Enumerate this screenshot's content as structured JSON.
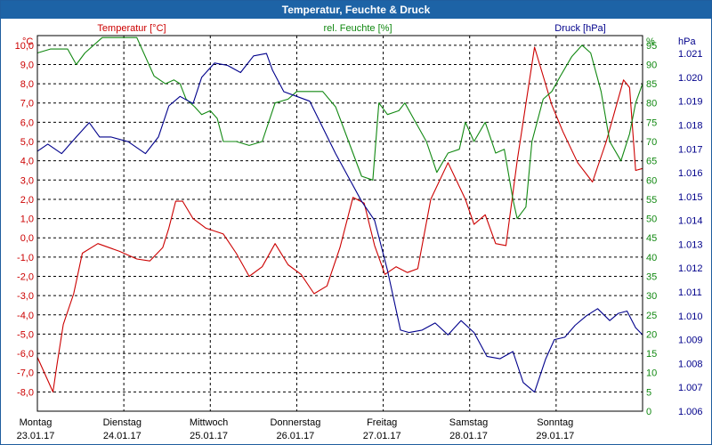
{
  "window": {
    "title": "Temperatur, Feuchte & Druck"
  },
  "colors": {
    "temperature": "#cc0000",
    "humidity": "#118811",
    "pressure": "#00008b",
    "title_bg": "#1d63a6"
  },
  "chart_data": {
    "type": "line",
    "title": "Temperatur, Feuchte & Druck",
    "x_days": [
      {
        "day": "Montag",
        "date": "23.01.17"
      },
      {
        "day": "Dienstag",
        "date": "24.01.17"
      },
      {
        "day": "Mittwoch",
        "date": "25.01.17"
      },
      {
        "day": "Donnerstag",
        "date": "26.01.17"
      },
      {
        "day": "Freitag",
        "date": "27.01.17"
      },
      {
        "day": "Samstag",
        "date": "28.01.17"
      },
      {
        "day": "Sonntag",
        "date": "29.01.17"
      }
    ],
    "x_range": [
      0,
      7
    ],
    "axes": {
      "temperature": {
        "label": "Temperatur [°C]",
        "unit": "°C",
        "range": [
          -9,
          10.5
        ],
        "ticks": [
          10.0,
          9.0,
          8.0,
          7.0,
          6.0,
          5.0,
          4.0,
          3.0,
          2.0,
          1.0,
          0.0,
          -1.0,
          -2.0,
          -3.0,
          -4.0,
          -5.0,
          -6.0,
          -7.0,
          -8.0
        ],
        "tick_labels": [
          "10,0",
          "9,0",
          "8,0",
          "7,0",
          "6,0",
          "5,0",
          "4,0",
          "3,0",
          "2,0",
          "1,0",
          "0,0",
          "-1,0",
          "-2,0",
          "-3,0",
          "-4,0",
          "-5,0",
          "-6,0",
          "-7,0",
          "-8,0"
        ]
      },
      "humidity": {
        "label": "rel. Feuchte [%]",
        "unit": "%",
        "range": [
          0,
          97.5
        ],
        "ticks": [
          95,
          90,
          85,
          80,
          75,
          70,
          65,
          60,
          55,
          50,
          45,
          40,
          35,
          30,
          25,
          20,
          15,
          10,
          5,
          0
        ],
        "tick_labels": [
          "95",
          "90",
          "85",
          "80",
          "75",
          "70",
          "65",
          "60",
          "55",
          "50",
          "45",
          "40",
          "35",
          "30",
          "25",
          "20",
          "15",
          "10",
          "5",
          "0"
        ]
      },
      "pressure": {
        "label": "Druck [hPa]",
        "unit": "hPa",
        "range": [
          1006,
          1021.75
        ],
        "ticks": [
          1021,
          1020,
          1019,
          1018,
          1017,
          1016,
          1015,
          1014,
          1013,
          1012,
          1011,
          1010,
          1009,
          1008,
          1007,
          1006
        ],
        "tick_labels": [
          "1.021",
          "1.020",
          "1.019",
          "1.018",
          "1.017",
          "1.016",
          "1.015",
          "1.014",
          "1.013",
          "1.012",
          "1.011",
          "1.010",
          "1.009",
          "1.008",
          "1.007",
          "1.006"
        ]
      }
    },
    "grid": true,
    "series": [
      {
        "name": "Temperatur",
        "axis": "temperature",
        "color": "#cc0000",
        "x": [
          0,
          0.12,
          0.18,
          0.23,
          0.3,
          0.42,
          0.52,
          0.7,
          0.95,
          1.15,
          1.3,
          1.45,
          1.52,
          1.6,
          1.68,
          1.8,
          1.95,
          2.15,
          2.3,
          2.45,
          2.6,
          2.75,
          2.9,
          3.05,
          3.2,
          3.35,
          3.5,
          3.65,
          3.78,
          3.9,
          4.02,
          4.15,
          4.28,
          4.4,
          4.55,
          4.75,
          4.95,
          5.05,
          5.18,
          5.3,
          5.42,
          5.55,
          5.75,
          5.95,
          6.08,
          6.25,
          6.42,
          6.58,
          6.78,
          6.85,
          6.92,
          7.0
        ],
        "y": [
          -6.2,
          -7.4,
          -8.0,
          -6.5,
          -4.5,
          -2.9,
          -0.8,
          -0.3,
          -0.7,
          -1.1,
          -1.2,
          -0.5,
          0.5,
          1.9,
          1.9,
          1.0,
          0.5,
          0.2,
          -0.8,
          -2.0,
          -1.5,
          -0.3,
          -1.4,
          -1.9,
          -2.9,
          -2.5,
          -0.5,
          2.1,
          1.8,
          -0.4,
          -1.9,
          -1.5,
          -1.8,
          -1.6,
          2.0,
          3.9,
          2.0,
          0.7,
          1.2,
          -0.3,
          -0.4,
          4.0,
          9.9,
          6.9,
          5.5,
          3.9,
          2.9,
          5.0,
          8.2,
          7.8,
          3.5,
          3.6
        ]
      },
      {
        "name": "rel. Feuchte",
        "axis": "humidity",
        "color": "#118811",
        "x": [
          0,
          0.15,
          0.35,
          0.45,
          0.55,
          0.75,
          0.95,
          1.05,
          1.15,
          1.35,
          1.48,
          1.58,
          1.65,
          1.72,
          1.82,
          1.9,
          2.0,
          2.08,
          2.15,
          2.3,
          2.45,
          2.6,
          2.75,
          2.9,
          3.0,
          3.15,
          3.3,
          3.45,
          3.6,
          3.75,
          3.88,
          3.95,
          4.05,
          4.18,
          4.25,
          4.35,
          4.5,
          4.62,
          4.75,
          4.88,
          4.95,
          5.05,
          5.18,
          5.3,
          5.4,
          5.5,
          5.55,
          5.65,
          5.72,
          5.85,
          5.95,
          6.05,
          6.18,
          6.3,
          6.4,
          6.52,
          6.62,
          6.75,
          6.85,
          6.92,
          7.0
        ],
        "y": [
          93,
          94,
          94,
          90,
          93,
          97,
          97,
          97,
          97,
          87,
          85,
          86,
          85,
          81,
          79,
          77,
          78,
          76,
          70,
          70,
          69,
          70,
          80,
          81,
          83,
          83,
          83,
          79,
          70,
          61,
          60,
          80,
          77,
          78,
          80,
          76,
          70,
          62,
          67,
          68,
          75,
          70,
          75,
          67,
          68,
          55,
          50,
          53,
          70,
          81,
          83,
          87,
          92,
          95,
          93,
          83,
          70,
          65,
          72,
          80,
          85
        ]
      },
      {
        "name": "Druck",
        "axis": "pressure",
        "color": "#00008b",
        "x": [
          0,
          0.12,
          0.28,
          0.45,
          0.6,
          0.72,
          0.85,
          1.05,
          1.25,
          1.4,
          1.52,
          1.65,
          1.8,
          1.9,
          2.05,
          2.2,
          2.35,
          2.5,
          2.65,
          2.72,
          2.85,
          3.0,
          3.15,
          3.3,
          3.45,
          3.6,
          3.75,
          3.9,
          4.05,
          4.2,
          4.3,
          4.45,
          4.6,
          4.75,
          4.9,
          5.05,
          5.2,
          5.35,
          5.5,
          5.62,
          5.75,
          5.88,
          5.98,
          6.1,
          6.22,
          6.35,
          6.48,
          6.62,
          6.72,
          6.82,
          6.92,
          7.0
        ],
        "y": [
          1016.9,
          1017.2,
          1016.8,
          1017.5,
          1018.1,
          1017.5,
          1017.5,
          1017.3,
          1016.8,
          1017.5,
          1018.8,
          1019.2,
          1018.9,
          1020.0,
          1020.6,
          1020.5,
          1020.2,
          1020.9,
          1021.0,
          1020.3,
          1019.4,
          1019.2,
          1019.0,
          1017.9,
          1016.8,
          1015.8,
          1014.8,
          1014.0,
          1011.9,
          1009.4,
          1009.3,
          1009.4,
          1009.7,
          1009.2,
          1009.8,
          1009.3,
          1008.3,
          1008.2,
          1008.5,
          1007.2,
          1006.8,
          1008.2,
          1009.0,
          1009.1,
          1009.6,
          1010.0,
          1010.3,
          1009.8,
          1010.1,
          1010.2,
          1009.5,
          1009.2
        ]
      }
    ]
  }
}
